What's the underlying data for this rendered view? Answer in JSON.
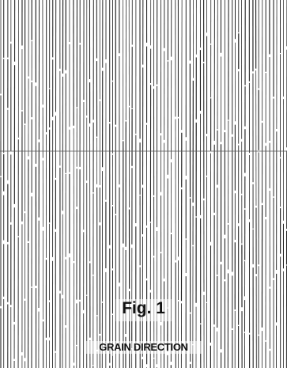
{
  "figure": {
    "number_label": "Fig. 1",
    "caption": "GRAIN DIRECTION"
  },
  "diagram": {
    "pattern": "vertical-grain-lines",
    "line_color": "#222222",
    "background_color": "#ffffff",
    "horizontal_seam": true
  }
}
